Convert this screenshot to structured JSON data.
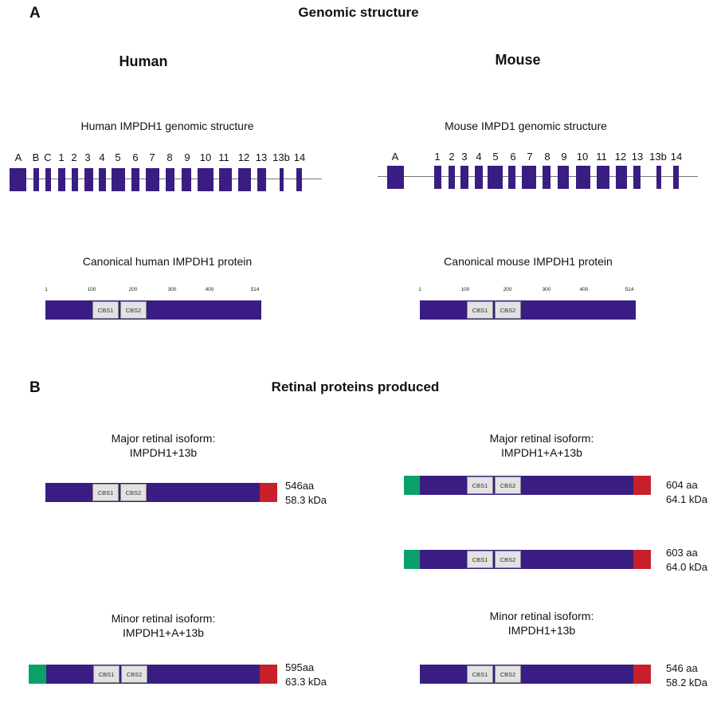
{
  "panel_a": {
    "letter": "A",
    "title": "Genomic structure",
    "human_label": "Human",
    "mouse_label": "Mouse",
    "human_struct_title": "Human IMPDH1 genomic structure",
    "mouse_struct_title": "Mouse IMPD1 genomic structure",
    "human_exons": [
      "A",
      "B",
      "C",
      "1",
      "2",
      "3",
      "4",
      "5",
      "6",
      "7",
      "8",
      "9",
      "10",
      "11",
      "12",
      "13",
      "13b",
      "14"
    ],
    "mouse_exons": [
      "A",
      "1",
      "2",
      "3",
      "4",
      "5",
      "6",
      "7",
      "8",
      "9",
      "10",
      "11",
      "12",
      "13",
      "13b",
      "14"
    ],
    "human_protein_title": "Canonical human IMPDH1 protein",
    "mouse_protein_title": "Canonical mouse IMPDH1 protein",
    "ticks": [
      "1",
      "100",
      "200",
      "300",
      "400",
      "514"
    ],
    "domains": [
      "CBS1",
      "CBS2"
    ]
  },
  "panel_b": {
    "letter": "B",
    "title": "Retinal proteins produced",
    "human_major_caption_1": "Major retinal isoform:",
    "human_major_caption_2": "IMPDH1+13b",
    "human_major_aa": "546aa",
    "human_major_kda": "58.3 kDa",
    "mouse_major_caption_1": "Major retinal isoform:",
    "mouse_major_caption_2": "IMPDH1+A+13b",
    "mouse_major_1_aa": "604 aa",
    "mouse_major_1_kda": "64.1 kDa",
    "mouse_major_2_aa": "603 aa",
    "mouse_major_2_kda": "64.0 kDa",
    "human_minor_caption_1": "Minor retinal isoform:",
    "human_minor_caption_2": "IMPDH1+A+13b",
    "human_minor_aa": "595aa",
    "human_minor_kda": "63.3 kDa",
    "mouse_minor_caption_1": "Minor retinal isoform:",
    "mouse_minor_caption_2": "IMPDH1+13b",
    "mouse_minor_aa": "546 aa",
    "mouse_minor_kda": "58.2 kDa"
  },
  "colors": {
    "protein": "#3a1d82",
    "exon_A_segment": "#0aa06a",
    "exon_13b_segment": "#c8202a",
    "domain_fill": "#e2e2e2"
  }
}
